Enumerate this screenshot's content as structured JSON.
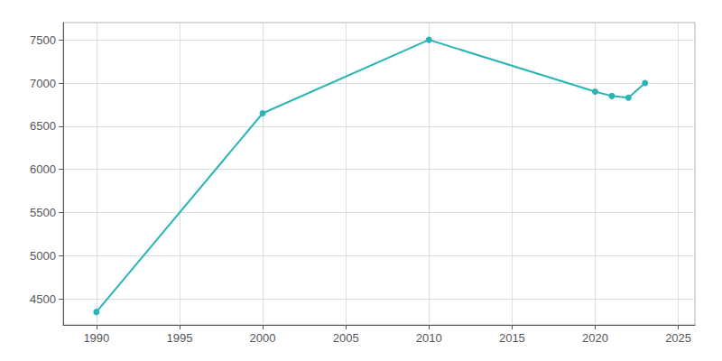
{
  "chart_data": {
    "type": "line",
    "x": [
      1990,
      2000,
      2010,
      2020,
      2021,
      2022,
      2023
    ],
    "values": [
      4350,
      6650,
      7500,
      6900,
      6850,
      6830,
      7000
    ],
    "color": "#2ab5b5",
    "marker": "circle",
    "xlim": [
      1988,
      2026
    ],
    "ylim": [
      4200,
      7700
    ],
    "xticks": [
      1990,
      1995,
      2000,
      2005,
      2010,
      2015,
      2020,
      2025
    ],
    "yticks": [
      4500,
      5000,
      5500,
      6000,
      6500,
      7000,
      7500
    ],
    "grid": true
  }
}
